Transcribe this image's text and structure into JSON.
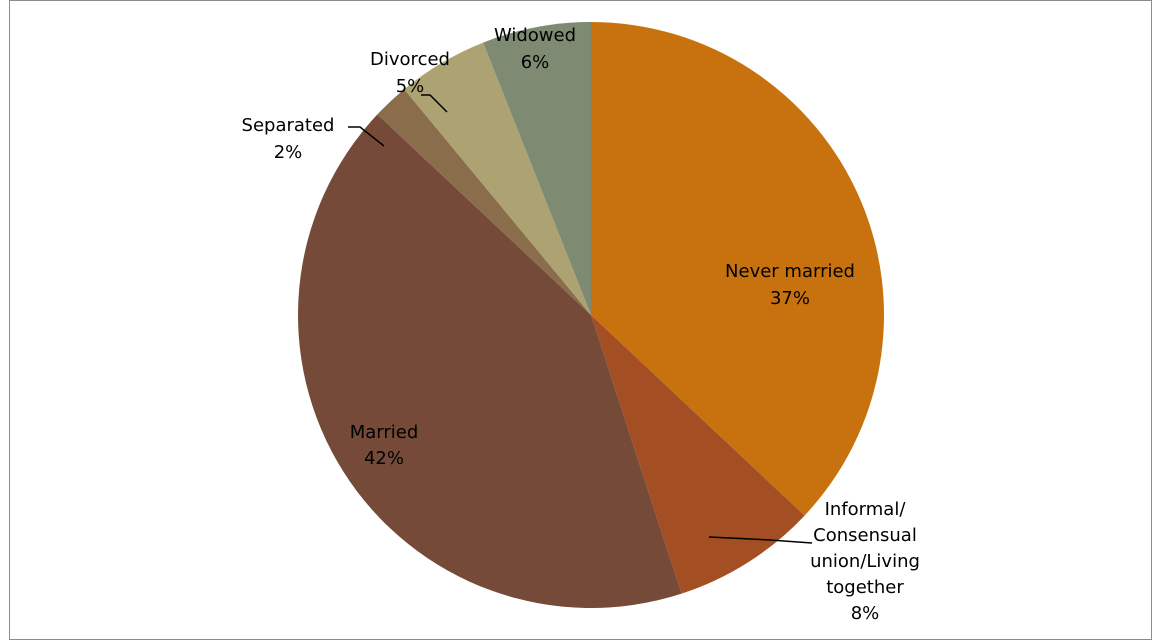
{
  "chart_data": {
    "type": "pie",
    "title": "",
    "start_angle_deg": 0,
    "direction": "clockwise",
    "slices": [
      {
        "name": "Never married",
        "value": 37,
        "label_lines": [
          "Never married",
          "37%"
        ],
        "color": "#C8720F",
        "label_position": "inside"
      },
      {
        "name": "Informal/ Consensual union/Living together",
        "value": 8,
        "label_lines": [
          "Informal/",
          "Consensual",
          "union/Living",
          "together",
          "8%"
        ],
        "color": "#A44E23",
        "label_position": "outside"
      },
      {
        "name": "Married",
        "value": 42,
        "label_lines": [
          "Married",
          "42%"
        ],
        "color": "#754A38",
        "label_position": "inside"
      },
      {
        "name": "Separated",
        "value": 2,
        "label_lines": [
          "Separated",
          "2%"
        ],
        "color": "#8A6E4B",
        "label_position": "outside"
      },
      {
        "name": "Divorced",
        "value": 5,
        "label_lines": [
          "Divorced",
          "5%"
        ],
        "color": "#ADA372",
        "label_position": "outside"
      },
      {
        "name": "Widowed",
        "value": 6,
        "label_lines": [
          "Widowed",
          "6%"
        ],
        "color": "#7E8A72",
        "label_position": "outside"
      }
    ]
  }
}
